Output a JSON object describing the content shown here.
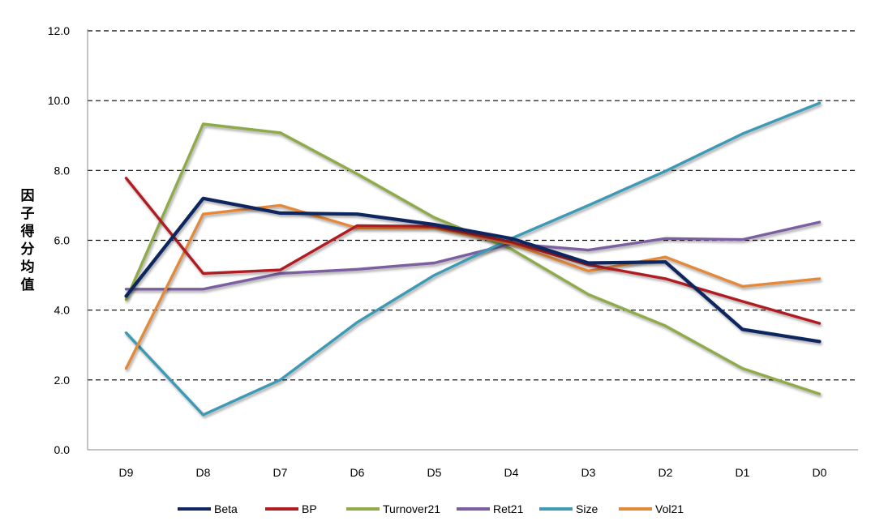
{
  "chart_data": {
    "type": "line",
    "title": "",
    "xlabel": "",
    "ylabel": "因子得分均值",
    "categories": [
      "D9",
      "D8",
      "D7",
      "D6",
      "D5",
      "D4",
      "D3",
      "D2",
      "D1",
      "D0"
    ],
    "ylim": [
      0,
      12
    ],
    "yticks": [
      "0.0",
      "2.0",
      "4.0",
      "6.0",
      "8.0",
      "10.0",
      "12.0"
    ],
    "grid": "horizontal-dashed",
    "legend_position": "bottom",
    "series": [
      {
        "name": "Turnover21",
        "color": "#8EAA4A",
        "values": [
          4.3,
          9.33,
          9.08,
          7.9,
          6.65,
          5.75,
          4.45,
          3.55,
          2.33,
          1.6
        ]
      },
      {
        "name": "Ret21",
        "color": "#7B5EA0",
        "values": [
          4.6,
          4.6,
          5.05,
          5.17,
          5.35,
          5.9,
          5.72,
          6.05,
          6.02,
          6.52
        ]
      },
      {
        "name": "Size",
        "color": "#3E9AB5",
        "values": [
          3.35,
          1.0,
          2.0,
          3.65,
          5.0,
          6.05,
          7.0,
          7.98,
          9.05,
          9.93
        ]
      },
      {
        "name": "Vol21",
        "color": "#E3893A",
        "values": [
          2.33,
          6.75,
          7.0,
          6.35,
          6.35,
          5.9,
          5.12,
          5.52,
          4.68,
          4.9
        ]
      },
      {
        "name": "BP",
        "color": "#B01C24",
        "values": [
          7.78,
          5.05,
          5.15,
          6.42,
          6.4,
          5.95,
          5.3,
          4.9,
          4.25,
          3.62
        ]
      },
      {
        "name": "Beta",
        "color": "#10265E",
        "values": [
          4.4,
          7.2,
          6.78,
          6.75,
          6.45,
          6.05,
          5.35,
          5.38,
          3.45,
          3.1
        ]
      }
    ],
    "legend_order": [
      "Beta",
      "BP",
      "Turnover21",
      "Ret21",
      "Size",
      "Vol21"
    ]
  }
}
